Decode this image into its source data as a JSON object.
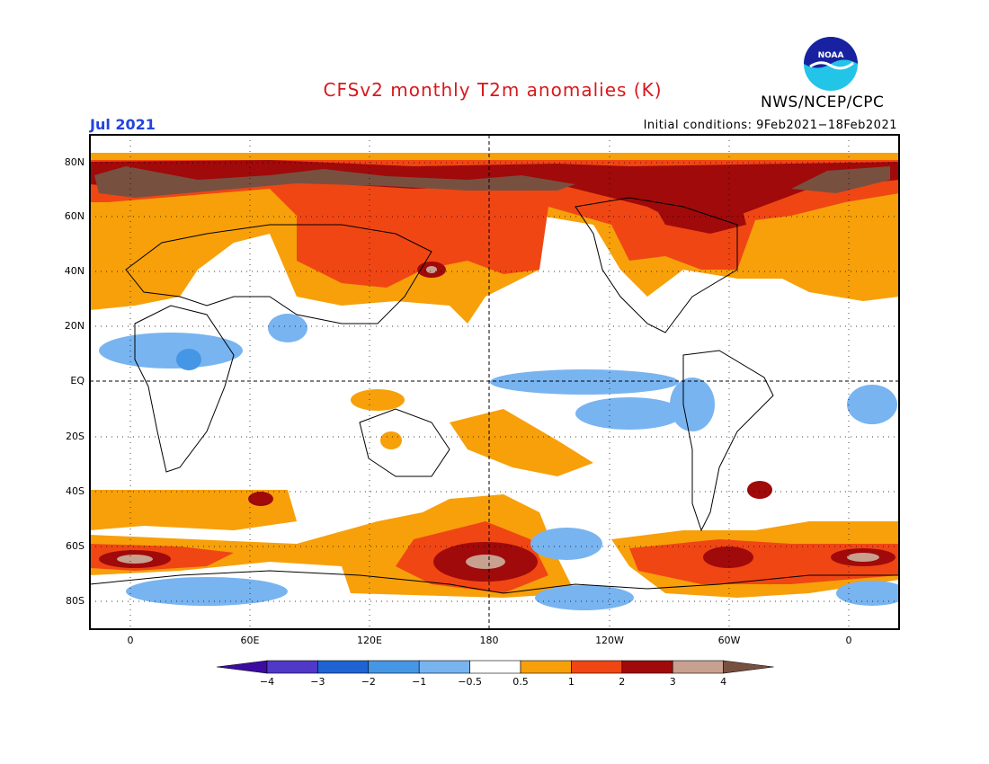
{
  "header": {
    "title": "CFSv2 monthly T2m anomalies (K)",
    "agency": "NWS/NCEP/CPC",
    "month": "Jul 2021",
    "initial_conditions": "Initial conditions: 9Feb2021−18Feb2021",
    "logo_text": "NOAA"
  },
  "map": {
    "projection": "equirectangular",
    "lat_labels": [
      "80N",
      "60N",
      "40N",
      "20N",
      "EQ",
      "20S",
      "40S",
      "60S",
      "80S"
    ],
    "lon_labels": [
      "0",
      "60E",
      "120E",
      "180",
      "120W",
      "60W",
      "0"
    ],
    "gridlines": "dotted",
    "reference_lines": [
      "equator",
      "dateline"
    ]
  },
  "colorbar": {
    "tick_labels": [
      "−4",
      "−3",
      "−2",
      "−1",
      "−0.5",
      "0.5",
      "1",
      "2",
      "3",
      "4"
    ],
    "colors": [
      "#3c0ca0",
      "#5038c8",
      "#1e64d2",
      "#4696e6",
      "#78b4f0",
      "#ffffff",
      "#f7a00a",
      "#f04614",
      "#a00a0a",
      "#c8a090",
      "#785040"
    ],
    "units": "K"
  }
}
